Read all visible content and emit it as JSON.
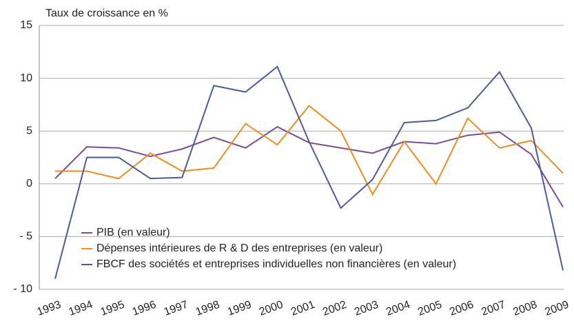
{
  "chart_data": {
    "type": "line",
    "y_axis_label": "Taux de croissance en %",
    "categories": [
      "1993",
      "1994",
      "1995",
      "1996",
      "1997",
      "1998",
      "1999",
      "2000",
      "2001",
      "2002",
      "2003",
      "2004",
      "2005",
      "2006",
      "2007",
      "2008",
      "2009"
    ],
    "series": [
      {
        "name": "PIB (en valeur)",
        "color": "#7b4a97",
        "values": [
          0.5,
          3.5,
          3.4,
          2.6,
          3.3,
          4.4,
          3.4,
          5.4,
          3.9,
          3.4,
          2.9,
          4.0,
          3.8,
          4.6,
          4.9,
          2.8,
          -2.2
        ]
      },
      {
        "name": "Dépenses intérieures de R & D des entreprises (en valeur)",
        "color": "#f28c1f",
        "values": [
          1.2,
          1.2,
          0.5,
          2.9,
          1.2,
          1.5,
          5.7,
          3.7,
          7.4,
          5.0,
          -1.0,
          4.0,
          0.0,
          6.2,
          3.4,
          4.1,
          1.0
        ]
      },
      {
        "name": "FBCF des sociétés et entreprises individuelles non financières (en valeur)",
        "color": "#4a5a9c",
        "values": [
          -9.0,
          2.5,
          2.5,
          0.5,
          0.6,
          9.3,
          8.7,
          11.1,
          4.0,
          -2.3,
          0.4,
          5.8,
          6.0,
          7.2,
          10.6,
          5.3,
          -8.2
        ]
      }
    ],
    "ylim": [
      -10,
      15
    ],
    "yticks": [
      {
        "value": -10,
        "label": "- 10"
      },
      {
        "value": -5,
        "label": "- 5"
      },
      0,
      5,
      10,
      15
    ],
    "grid": true,
    "legend": "lower left"
  }
}
